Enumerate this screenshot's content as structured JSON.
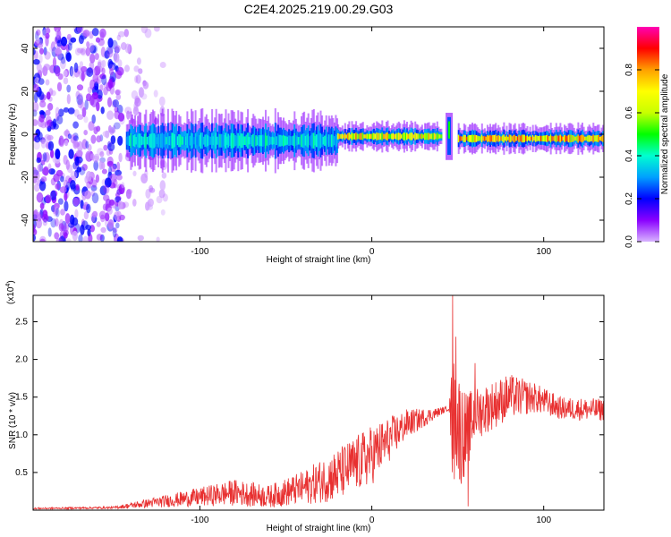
{
  "title": "C2E4.2025.219.00.29.G03",
  "chart_data": [
    {
      "type": "heatmap",
      "name": "spectrogram",
      "xlabel": "Height of straight line (km)",
      "ylabel": "Frequency (Hz)",
      "xlim": [
        -197,
        135
      ],
      "ylim": [
        -50,
        50
      ],
      "xticks": [
        -100,
        0,
        100
      ],
      "yticks": [
        -40,
        -20,
        0,
        20,
        40
      ],
      "colorbar": {
        "label": "Normalized spectral amplitude",
        "range": [
          0,
          1
        ],
        "ticks": [
          "0.0",
          "0.2",
          "0.4",
          "0.6",
          "0.8"
        ],
        "stops": [
          "#d8b4ff",
          "#8a00ff",
          "#0000ff",
          "#00a0ff",
          "#00ffd0",
          "#00ff00",
          "#c8ff00",
          "#ffff00",
          "#ffa000",
          "#ff0000",
          "#ff00b4"
        ]
      },
      "features": [
        {
          "kind": "noise",
          "x_range": [
            -197,
            -145
          ],
          "freq_range": [
            -50,
            50
          ],
          "amplitude": 0.1
        },
        {
          "kind": "sparse",
          "x_range": [
            -145,
            -120
          ],
          "freq_range": [
            -50,
            50
          ],
          "amplitude": 0.02
        },
        {
          "kind": "band",
          "x_range": [
            -143,
            -20
          ],
          "center_hz": -3,
          "halfwidth_hz": 6,
          "amplitude": 0.4
        },
        {
          "kind": "band",
          "x_range": [
            -20,
            40
          ],
          "center_hz": -1,
          "halfwidth_hz": 3,
          "amplitude": 0.75
        },
        {
          "kind": "spike",
          "x": 45,
          "freq_range": [
            -12,
            10
          ],
          "amplitude": 0.5
        },
        {
          "kind": "band",
          "x_range": [
            50,
            135
          ],
          "center_hz": -2,
          "halfwidth_hz": 3,
          "amplitude": 0.8
        }
      ]
    },
    {
      "type": "line",
      "name": "snr",
      "xlabel": "Height of straight line (km)",
      "ylabel": "SNR (10 * v/v)",
      "y_scale_label": "(x10",
      "y_scale_exp": "4",
      "y_scale_close": ")",
      "color": "#e83030",
      "xlim": [
        -197,
        135
      ],
      "ylim": [
        0,
        2.85
      ],
      "xticks": [
        -100,
        0,
        100
      ],
      "yticks": [
        0.5,
        1.0,
        1.5,
        2.0,
        2.5
      ],
      "envelope": [
        {
          "x": -197,
          "base": 0.02,
          "spread": 0.02
        },
        {
          "x": -150,
          "base": 0.03,
          "spread": 0.03
        },
        {
          "x": -130,
          "base": 0.08,
          "spread": 0.12
        },
        {
          "x": -100,
          "base": 0.15,
          "spread": 0.25
        },
        {
          "x": -80,
          "base": 0.2,
          "spread": 0.35
        },
        {
          "x": -60,
          "base": 0.15,
          "spread": 0.3
        },
        {
          "x": -40,
          "base": 0.25,
          "spread": 0.45
        },
        {
          "x": -20,
          "base": 0.4,
          "spread": 0.7
        },
        {
          "x": 0,
          "base": 0.65,
          "spread": 0.8
        },
        {
          "x": 20,
          "base": 1.1,
          "spread": 0.4
        },
        {
          "x": 40,
          "base": 1.3,
          "spread": 0.1
        },
        {
          "x": 45,
          "base": 1.35,
          "spread": 0.05
        },
        {
          "x": 47,
          "base": 1.0,
          "spread": 1.8
        },
        {
          "x": 55,
          "base": 0.9,
          "spread": 1.1
        },
        {
          "x": 60,
          "base": 1.2,
          "spread": 0.7
        },
        {
          "x": 80,
          "base": 1.45,
          "spread": 0.6
        },
        {
          "x": 95,
          "base": 1.45,
          "spread": 0.4
        },
        {
          "x": 110,
          "base": 1.32,
          "spread": 0.3
        },
        {
          "x": 135,
          "base": 1.3,
          "spread": 0.3
        }
      ],
      "peaks": [
        {
          "x": 47,
          "y": 2.85
        },
        {
          "x": 49,
          "y": 2.3
        },
        {
          "x": 52,
          "y": 0.35
        },
        {
          "x": 56,
          "y": 0.05
        },
        {
          "x": 60,
          "y": 1.95
        }
      ]
    }
  ]
}
